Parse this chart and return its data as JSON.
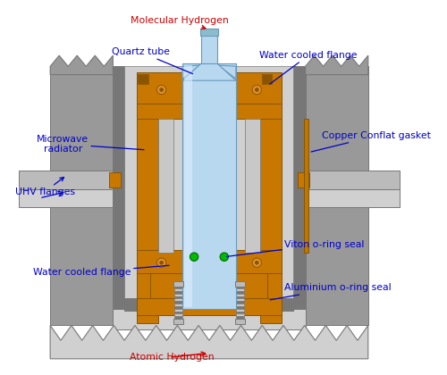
{
  "bg_color": "#ffffff",
  "blue": "#0000cc",
  "red": "#cc0000",
  "orange": "#c87800",
  "orange_dark": "#8b5500",
  "orange_light": "#e09030",
  "gray_outer": "#999999",
  "gray_mid": "#bbbbbb",
  "gray_light": "#d0d0d0",
  "gray_dark": "#777777",
  "gray_inner": "#c8c8c8",
  "quartz_blue": "#b8d8f0",
  "quartz_light": "#ddeeff",
  "quartz_outline": "#6699bb",
  "green": "#00bb00",
  "bolt_gray": "#aaaaaa",
  "black": "#000000",
  "labels": {
    "mol_h2": "Molecular Hydrogen",
    "quartz": "Quartz tube",
    "wcf_top": "Water cooled flange",
    "mw_rad": "Microwave\nradiator",
    "uhv": "UHV flanges",
    "copper": "Copper Conflat gasket",
    "wcf_bot": "Water cooled flange",
    "viton": "Viton o-ring seal",
    "alum": "Aluminium o-ring seal",
    "atomic_h": "Atomic Hydrogen"
  }
}
